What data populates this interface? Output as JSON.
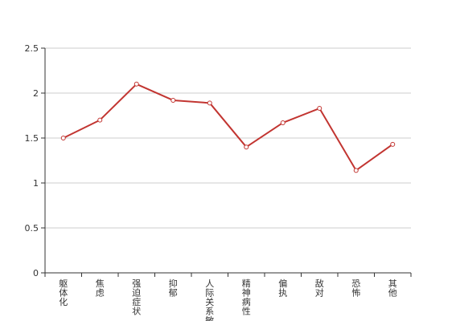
{
  "chart_data": {
    "type": "line",
    "categories": [
      "躯体化",
      "焦虑",
      "强迫症状",
      "抑郁",
      "人际关系敏感",
      "精神病性",
      "偏执",
      "敌对",
      "恐怖",
      "其他"
    ],
    "series": [
      {
        "values": [
          1.5,
          1.7,
          2.1,
          1.92,
          1.89,
          1.4,
          1.67,
          1.83,
          1.14,
          1.43
        ],
        "color": "#c23531"
      }
    ],
    "y_ticks": [
      "0",
      "0.5",
      "1",
      "1.5",
      "2",
      "2.5"
    ],
    "ylim": [
      0,
      2.5
    ],
    "grid": true,
    "legend": "none"
  }
}
